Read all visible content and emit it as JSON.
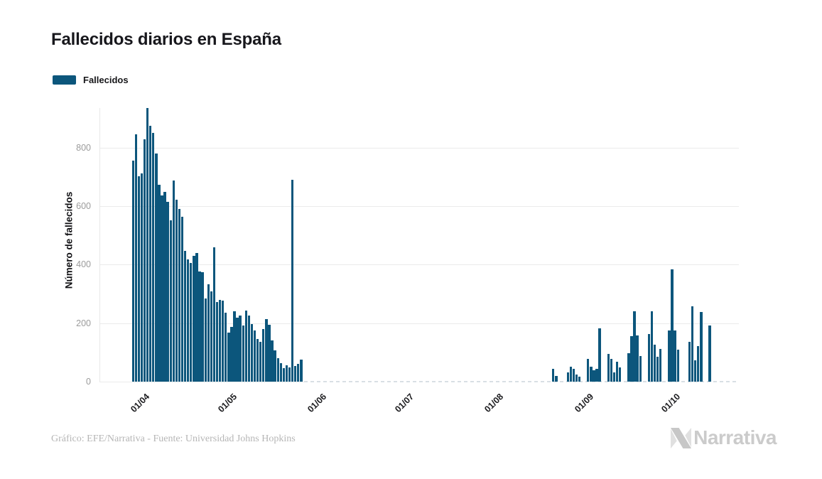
{
  "title": "Fallecidos diarios en España",
  "legend": {
    "label": "Fallecidos"
  },
  "footer": {
    "credit": "Gráfico: EFE/Narrativa - Fuente: Universidad Johns Hopkins",
    "logo_text": "Narrativa"
  },
  "colors": {
    "bar": "#0c567c",
    "grid": "#ebebeb",
    "axis_line": "#e8e8e8",
    "zero_dashed": "#d9dfe4",
    "y_tick_text": "#9b9b9b",
    "x_tick_text": "#1c1c1f",
    "title_text": "#17171c",
    "credit_text": "#b6b6b6",
    "logo_gray": "#cbcbcb"
  },
  "chart_data": {
    "type": "bar",
    "title": "Fallecidos diarios en España",
    "series_name": "Fallecidos",
    "xlabel": "",
    "ylabel": "Número de fallecidos",
    "yticks": [
      0,
      200,
      400,
      600,
      800
    ],
    "ylim": [
      0,
      950
    ],
    "grid": true,
    "legend_position": "top-left",
    "x_axis": {
      "tick_labels": [
        "01/04",
        "01/05",
        "01/06",
        "01/07",
        "01/08",
        "01/09",
        "01/10"
      ],
      "tick_day_offsets": [
        3,
        33,
        64,
        94,
        125,
        156,
        186
      ]
    },
    "clusters": [
      {
        "start_day": 0,
        "values": [
          756,
          845,
          703,
          712,
          830,
          935,
          875,
          850,
          780,
          674,
          637,
          650,
          614,
          553,
          687,
          622,
          592,
          563,
          447,
          417,
          406,
          431,
          440,
          378,
          374,
          284,
          333,
          309,
          459,
          272,
          280,
          278,
          236,
          167,
          187,
          240,
          219,
          226,
          191,
          242,
          227,
          197,
          175,
          145,
          136,
          179,
          213,
          195,
          140,
          106,
          81,
          63,
          45,
          56,
          48,
          690,
          53,
          60,
          75
        ]
      },
      {
        "start_day": 145,
        "values": [
          44,
          20,
          0,
          0,
          0,
          32,
          50,
          44,
          24,
          16,
          0,
          0,
          79,
          52,
          40,
          44,
          183,
          0,
          0,
          96,
          79,
          32,
          67,
          48,
          0,
          0,
          98,
          156,
          240,
          159,
          88,
          0,
          0,
          164,
          240,
          127,
          84,
          111,
          0,
          0,
          174,
          383,
          175,
          109,
          0,
          0,
          0,
          137,
          257,
          74,
          121,
          238,
          0,
          0,
          192
        ]
      }
    ]
  }
}
